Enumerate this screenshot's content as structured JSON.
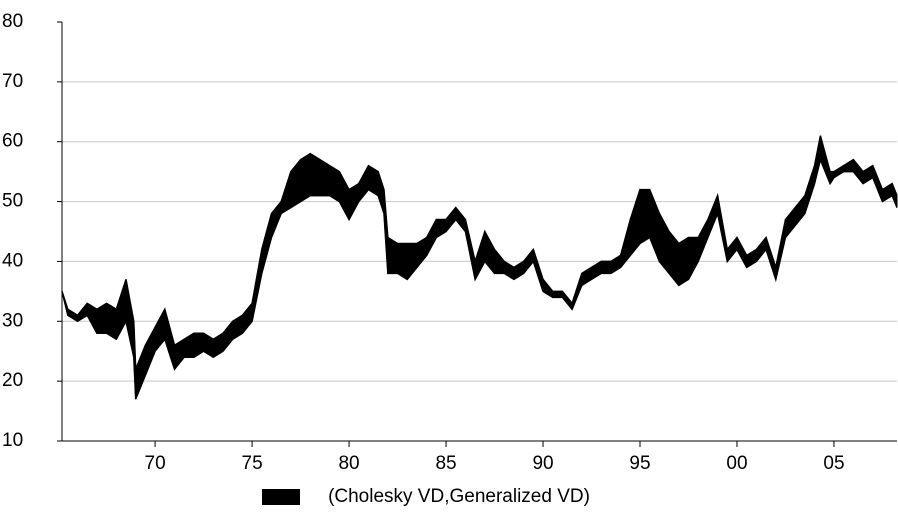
{
  "chart_data": {
    "type": "band",
    "color": "#000000",
    "grid": true,
    "legend": "(Cholesky VD,Generalized VD)",
    "xlim": [
      1965.2,
      2008.25
    ],
    "xticks": [
      {
        "value": 1970,
        "label": "70"
      },
      {
        "value": 1975,
        "label": "75"
      },
      {
        "value": 1980,
        "label": "80"
      },
      {
        "value": 1985,
        "label": "85"
      },
      {
        "value": 1990,
        "label": "90"
      },
      {
        "value": 1995,
        "label": "95"
      },
      {
        "value": 2000,
        "label": "00"
      },
      {
        "value": 2005,
        "label": "05"
      }
    ],
    "ylim": [
      10,
      80
    ],
    "yticks": [
      10,
      20,
      30,
      40,
      50,
      60,
      70,
      80
    ],
    "x": [
      1965.2,
      1965.5,
      1966,
      1966.5,
      1967,
      1967.5,
      1968,
      1968.5,
      1968.9,
      1969,
      1969.5,
      1970,
      1970.5,
      1971,
      1971.5,
      1972,
      1972.5,
      1973,
      1973.5,
      1974,
      1974.5,
      1975,
      1975.5,
      1976,
      1976.5,
      1977,
      1977.5,
      1978,
      1978.5,
      1979,
      1979.5,
      1980,
      1980.5,
      1981,
      1981.5,
      1981.8,
      1982,
      1982.5,
      1983,
      1983.5,
      1984,
      1984.5,
      1985,
      1985.5,
      1986,
      1986.5,
      1987,
      1987.5,
      1988,
      1988.5,
      1989,
      1989.5,
      1990,
      1990.5,
      1991,
      1991.5,
      1992,
      1992.5,
      1993,
      1993.5,
      1994,
      1994.5,
      1995,
      1995.5,
      1996,
      1996.5,
      1997,
      1997.5,
      1998,
      1998.5,
      1999,
      1999.5,
      2000,
      2000.5,
      2001,
      2001.5,
      2002,
      2002.5,
      2003,
      2003.5,
      2004,
      2004.3,
      2004.8,
      2005,
      2005.5,
      2006,
      2006.5,
      2007,
      2007.5,
      2008,
      2008.25
    ],
    "series": [
      {
        "values": [
          35,
          31,
          30,
          31,
          28,
          28,
          27,
          30,
          24,
          17,
          21,
          25,
          27,
          22,
          24,
          24,
          25,
          24,
          25,
          27,
          28,
          30,
          38,
          44,
          48,
          49,
          50,
          51,
          51,
          51,
          50,
          47,
          50,
          52,
          51,
          48,
          38,
          38,
          37,
          39,
          41,
          44,
          45,
          47,
          45,
          37,
          40,
          38,
          38,
          37,
          38,
          40,
          35,
          34,
          34,
          32,
          36,
          37,
          38,
          38,
          39,
          41,
          43,
          44,
          40,
          38,
          36,
          37,
          40,
          44,
          48,
          40,
          42,
          39,
          40,
          42,
          37,
          44,
          46,
          48,
          53,
          57,
          53,
          54,
          55,
          55,
          53,
          54,
          50,
          51,
          49
        ]
      },
      {
        "values": [
          35,
          32,
          31,
          33,
          32,
          33,
          32,
          37,
          30,
          22,
          26,
          29,
          32,
          26,
          27,
          28,
          28,
          27,
          28,
          30,
          31,
          33,
          42,
          48,
          50,
          55,
          57,
          58,
          57,
          56,
          55,
          52,
          53,
          56,
          55,
          52,
          44,
          43,
          43,
          43,
          44,
          47,
          47,
          49,
          47,
          40,
          45,
          42,
          40,
          39,
          40,
          42,
          37,
          35,
          35,
          33,
          38,
          39,
          40,
          40,
          41,
          47,
          52,
          52,
          48,
          45,
          43,
          44,
          44,
          47,
          51,
          42,
          44,
          41,
          42,
          44,
          39,
          47,
          49,
          51,
          56,
          61,
          55,
          55,
          56,
          57,
          55,
          56,
          52,
          53,
          51
        ]
      }
    ]
  }
}
